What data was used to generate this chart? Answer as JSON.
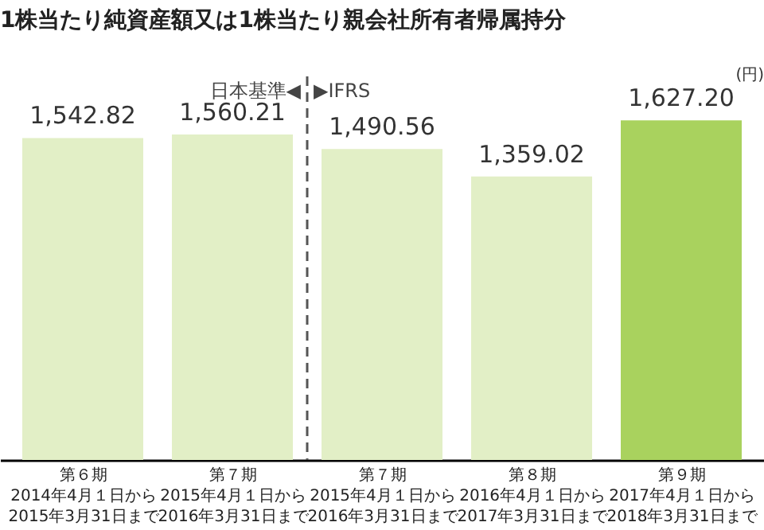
{
  "chart_data": {
    "type": "bar",
    "title": "1株当たり純資産額又は1株当たり親会社所有者帰属持分",
    "ylabel": "(円)",
    "categories": [
      "第６期\n2014年4月１日から\n2015年3月31日まで",
      "第７期\n2015年4月１日から\n2016年3月31日まで",
      "第７期\n2015年4月１日から\n2016年3月31日まで",
      "第８期\n2016年4月１日から\n2017年3月31日まで",
      "第９期\n2017年4月１日から\n2018年3月31日まで"
    ],
    "values": [
      1542.82,
      1560.21,
      1490.56,
      1359.02,
      1627.2
    ],
    "value_labels": [
      "1,542.82",
      "1,560.21",
      "1,490.56",
      "1,359.02",
      "1,627.20"
    ],
    "colors": [
      "#e2efc6",
      "#e2efc6",
      "#e2efc6",
      "#e2efc6",
      "#a9d25e"
    ],
    "annotations": [
      "日本基準◀",
      "▶IFRS"
    ],
    "grid": false
  }
}
